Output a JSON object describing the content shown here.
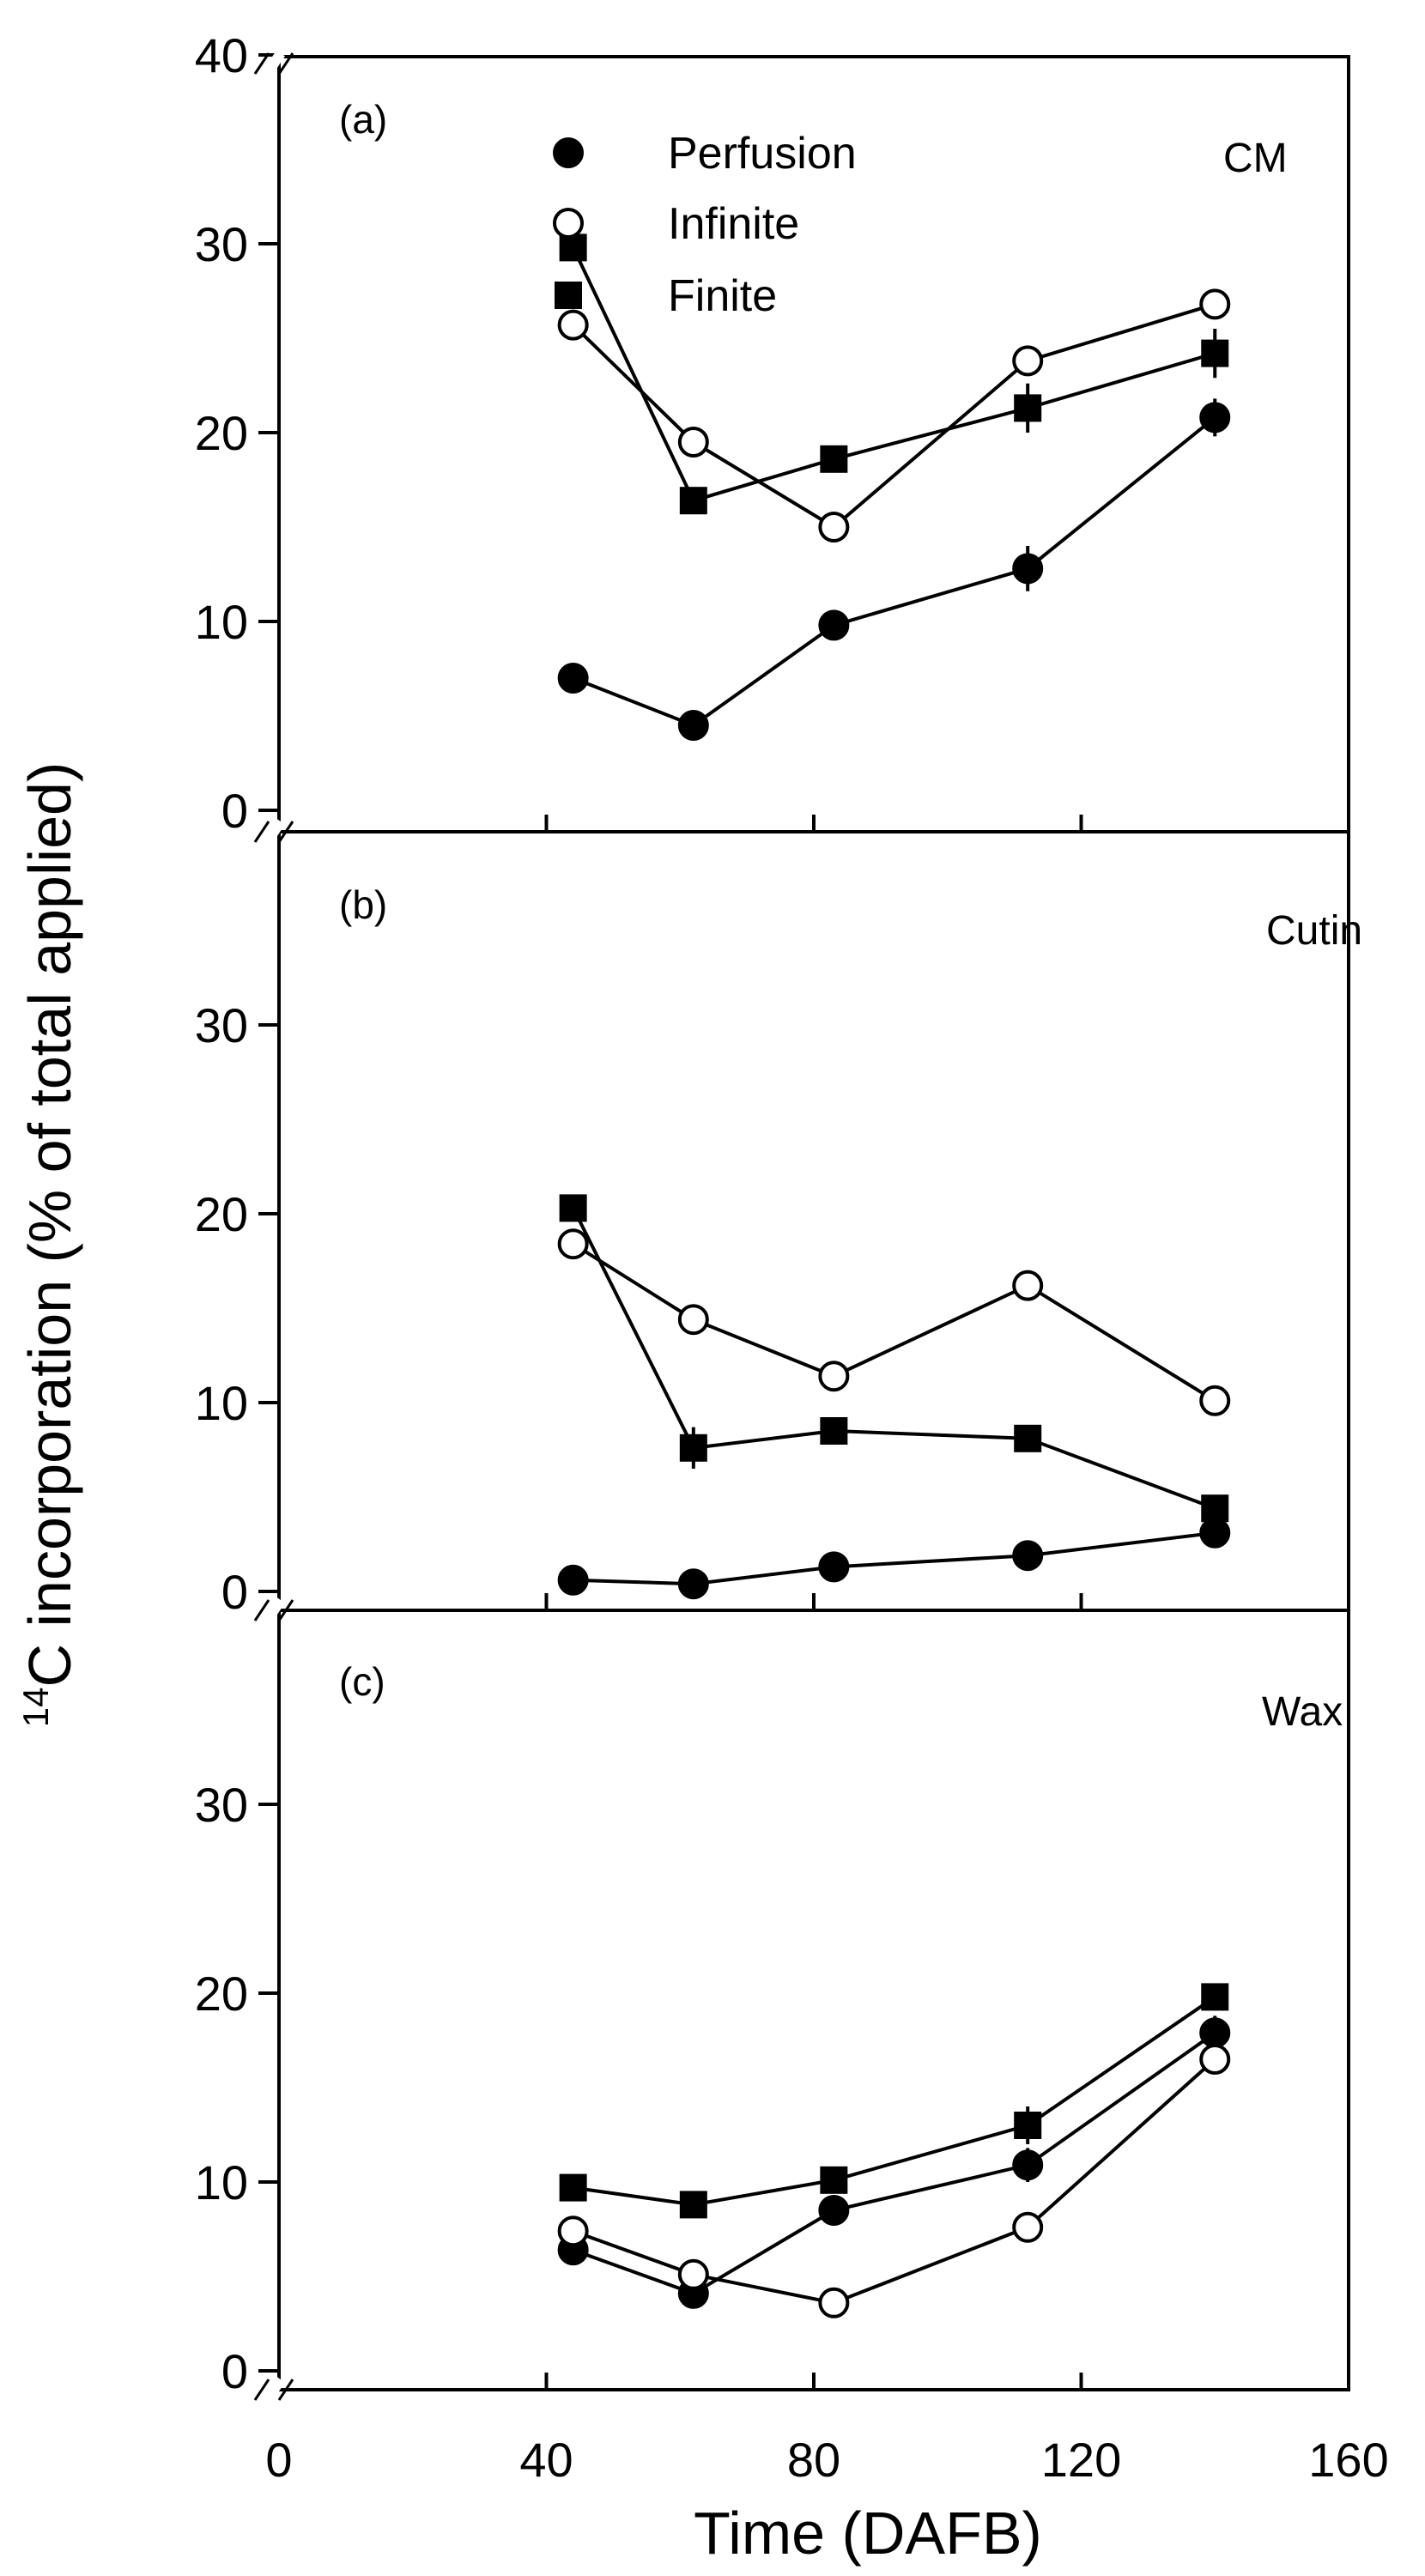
{
  "chart_data": {
    "type": "line",
    "xlabel": "Time (DAFB)",
    "ylabel_sup": "14",
    "ylabel": "C incorporation (% of total applied)",
    "xlim": [
      0,
      160
    ],
    "x_ticks": [
      0,
      40,
      80,
      120,
      160
    ],
    "x_tick_labels": [
      "0",
      "40",
      "80",
      "120",
      "160"
    ],
    "x_axis_break": true,
    "legend": {
      "placement": "top-center of panel (a)",
      "entries": [
        {
          "name": "Perfusion",
          "marker": "filled-circle"
        },
        {
          "name": "Infinite",
          "marker": "open-circle"
        },
        {
          "name": "Finite",
          "marker": "filled-square"
        }
      ]
    },
    "panels": [
      {
        "id": "a",
        "letter": "(a)",
        "title": "CM",
        "ylim": [
          0,
          40
        ],
        "y_ticks": [
          0,
          10,
          20,
          30,
          40
        ],
        "y_tick_labels": [
          "0",
          "10",
          "20",
          "30",
          "40"
        ],
        "x": [
          44,
          62,
          83,
          112,
          140
        ],
        "series": [
          {
            "name": "Perfusion",
            "marker": "filled-circle",
            "values": [
              7.0,
              4.5,
              9.8,
              12.8,
              20.8
            ],
            "err": [
              0,
              0,
              0.8,
              1.2,
              1.0
            ]
          },
          {
            "name": "Infinite",
            "marker": "open-circle",
            "values": [
              25.7,
              19.5,
              15.0,
              23.8,
              26.8
            ],
            "err": [
              0.5,
              0.5,
              0,
              0.5,
              0.4
            ]
          },
          {
            "name": "Finite",
            "marker": "filled-square",
            "values": [
              29.8,
              16.4,
              18.6,
              21.3,
              24.2
            ],
            "err": [
              0.7,
              0,
              0.5,
              1.3,
              1.3
            ]
          }
        ]
      },
      {
        "id": "b",
        "letter": "(b)",
        "title": "Cutin",
        "ylim": [
          0,
          40
        ],
        "y_ticks": [
          0,
          10,
          20,
          30
        ],
        "y_tick_labels": [
          "0",
          "10",
          "20",
          "30"
        ],
        "x": [
          44,
          62,
          83,
          112,
          140
        ],
        "series": [
          {
            "name": "Perfusion",
            "marker": "filled-circle",
            "values": [
              0.6,
              0.4,
              1.3,
              1.9,
              3.1
            ],
            "err": [
              0,
              0,
              0,
              0,
              0
            ]
          },
          {
            "name": "Infinite",
            "marker": "open-circle",
            "values": [
              18.4,
              14.4,
              11.4,
              16.2,
              10.1
            ],
            "err": [
              0,
              0.8,
              0,
              0,
              0.7
            ]
          },
          {
            "name": "Finite",
            "marker": "filled-square",
            "values": [
              20.3,
              7.6,
              8.5,
              8.1,
              4.4
            ],
            "err": [
              0.5,
              1.1,
              0,
              0,
              0
            ]
          }
        ]
      },
      {
        "id": "c",
        "letter": "(c)",
        "title": "Wax",
        "ylim": [
          0,
          40
        ],
        "y_ticks": [
          0,
          10,
          20,
          30
        ],
        "y_tick_labels": [
          "0",
          "10",
          "20",
          "30"
        ],
        "x": [
          44,
          62,
          83,
          112,
          140
        ],
        "series": [
          {
            "name": "Perfusion",
            "marker": "filled-circle",
            "values": [
              6.4,
              4.1,
              8.5,
              10.9,
              17.9
            ],
            "err": [
              0,
              0,
              0.8,
              0.9,
              0.9
            ]
          },
          {
            "name": "Infinite",
            "marker": "open-circle",
            "values": [
              7.4,
              5.1,
              3.6,
              7.6,
              16.5
            ],
            "err": [
              0,
              0,
              0,
              0,
              0.7
            ]
          },
          {
            "name": "Finite",
            "marker": "filled-square",
            "values": [
              9.7,
              8.8,
              10.1,
              13.0,
              19.8
            ],
            "err": [
              0,
              0,
              0.4,
              1.0,
              0
            ]
          }
        ]
      }
    ]
  }
}
